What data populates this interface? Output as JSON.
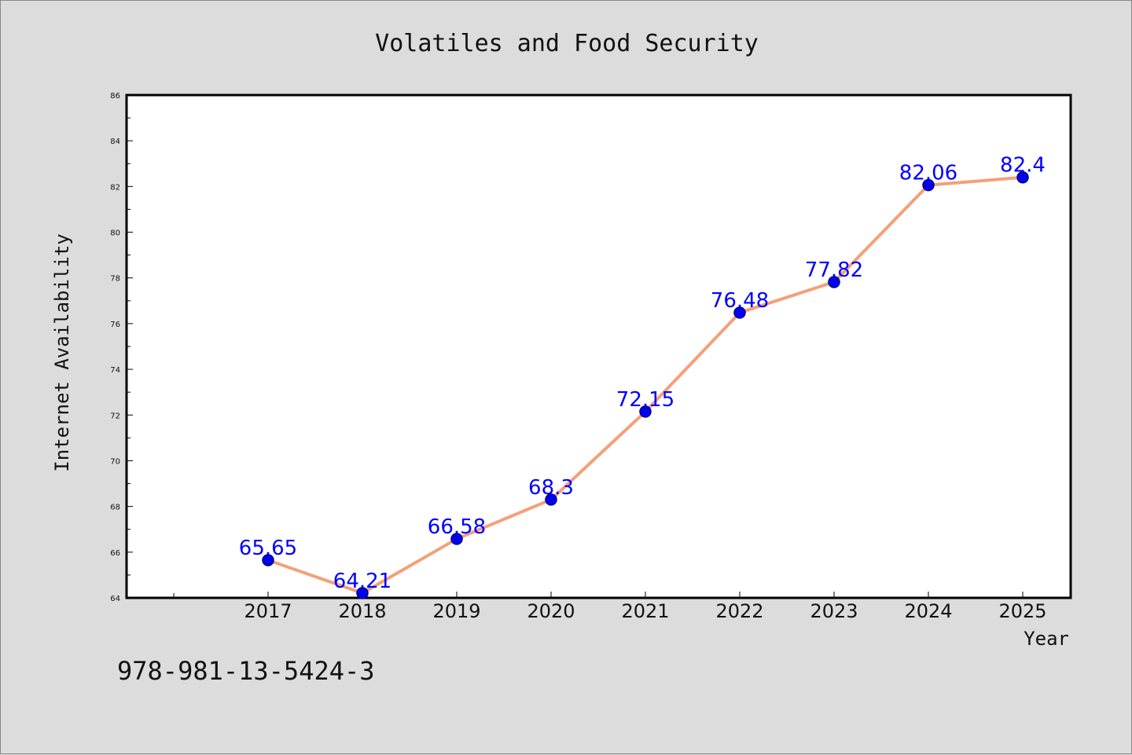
{
  "chart_data": {
    "type": "line",
    "title": "Volatiles and Food Security",
    "xlabel": "Year",
    "ylabel": "Internet Availability",
    "categories": [
      "2017",
      "2018",
      "2019",
      "2020",
      "2021",
      "2022",
      "2023",
      "2024",
      "2025"
    ],
    "series": [
      {
        "values": [
          65.65,
          64.21,
          66.58,
          68.3,
          72.15,
          76.48,
          77.82,
          82.06,
          82.4
        ],
        "data_labels": [
          "65.65",
          "64.21",
          "66.58",
          "68.3",
          "72.15",
          "76.48",
          "77.82",
          "82.06",
          "82.4"
        ]
      }
    ],
    "ylim": [
      64,
      86
    ],
    "yticks": [
      "64",
      "66",
      "68",
      "70",
      "72",
      "74",
      "76",
      "78",
      "80",
      "82",
      "84",
      "86"
    ],
    "grid": false,
    "legend": "none",
    "colors": {
      "line": "#f4a07a",
      "marker": "#0000ee",
      "marker_edge": "#00008b",
      "data_label": "#0000ff",
      "background": "#dcdcdc",
      "plot_background": "#ffffff"
    }
  },
  "footer": {
    "isbn": "978-981-13-5424-3"
  }
}
